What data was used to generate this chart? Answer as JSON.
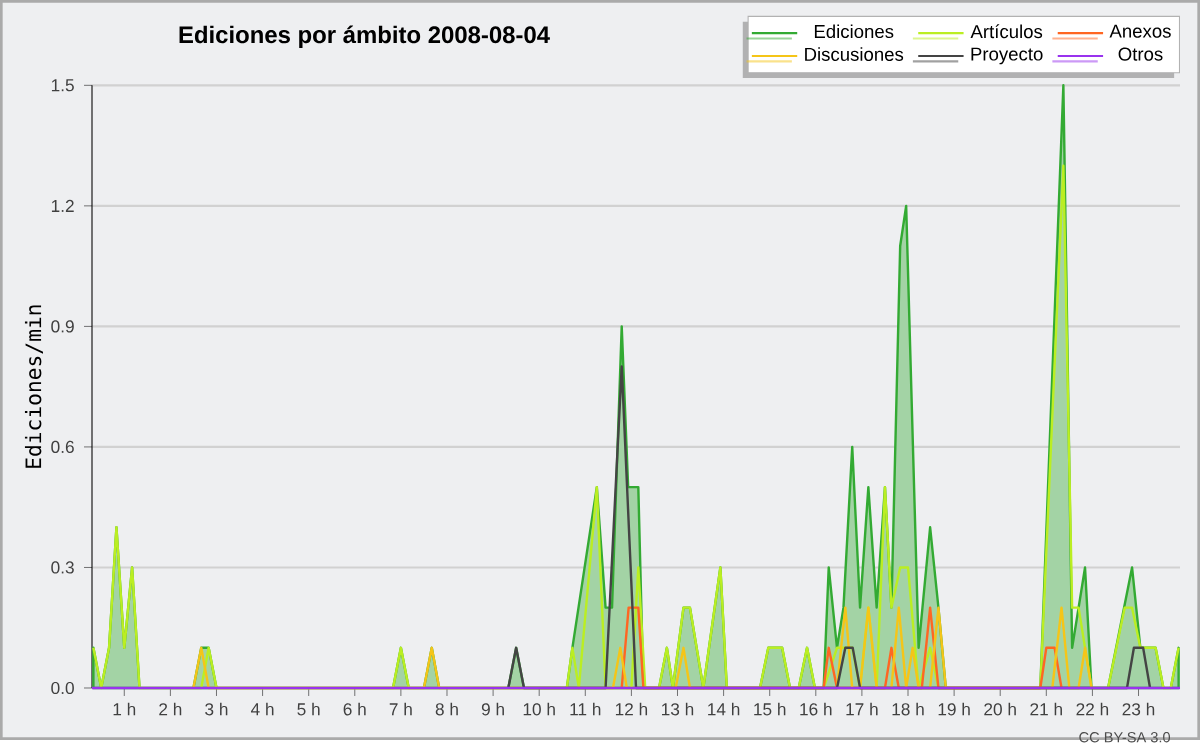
{
  "chart_data": {
    "type": "line",
    "title": "Ediciones por ámbito  2008-08-04",
    "ylabel": "Ediciones/min",
    "annotations": [
      "CC BY-SA 3.0"
    ],
    "xlim": [
      0.3,
      23.9
    ],
    "ylim": [
      0,
      1.5
    ],
    "xticks": [
      {
        "value": 1,
        "label": "1 h"
      },
      {
        "value": 2,
        "label": "2 h"
      },
      {
        "value": 3,
        "label": "3 h"
      },
      {
        "value": 4,
        "label": "4 h"
      },
      {
        "value": 5,
        "label": "5 h"
      },
      {
        "value": 6,
        "label": "6 h"
      },
      {
        "value": 7,
        "label": "7 h"
      },
      {
        "value": 8,
        "label": "8 h"
      },
      {
        "value": 9,
        "label": "9 h"
      },
      {
        "value": 10,
        "label": "10 h"
      },
      {
        "value": 11,
        "label": "11 h"
      },
      {
        "value": 12,
        "label": "12 h"
      },
      {
        "value": 13,
        "label": "13 h"
      },
      {
        "value": 14,
        "label": "14 h"
      },
      {
        "value": 15,
        "label": "15 h"
      },
      {
        "value": 16,
        "label": "16 h"
      },
      {
        "value": 17,
        "label": "17 h"
      },
      {
        "value": 18,
        "label": "18 h"
      },
      {
        "value": 19,
        "label": "19 h"
      },
      {
        "value": 20,
        "label": "20 h"
      },
      {
        "value": 21,
        "label": "21 h"
      },
      {
        "value": 22,
        "label": "22 h"
      },
      {
        "value": 23,
        "label": "23 h"
      }
    ],
    "yticks": [
      {
        "value": 0,
        "label": "0.0"
      },
      0.3,
      0.6,
      0.9,
      1.2,
      1.5
    ],
    "grid": "y",
    "legend": "top right",
    "marker": "none",
    "line_style": "solid",
    "series": [
      {
        "name": "Ediciones",
        "type": "area",
        "color": "#33aa33",
        "x": [
          0.33,
          0.5,
          0.67,
          0.83,
          1.0,
          1.17,
          1.33,
          2.5,
          2.67,
          2.83,
          3.0,
          6.83,
          7.0,
          7.17,
          7.5,
          7.67,
          7.83,
          9.33,
          9.5,
          9.67,
          10.6,
          10.72,
          11.25,
          11.44,
          11.58,
          11.79,
          11.93,
          12.15,
          12.26,
          12.6,
          12.77,
          12.9,
          13.13,
          13.27,
          13.56,
          13.93,
          14.07,
          14.79,
          14.97,
          15.27,
          15.44,
          15.63,
          15.81,
          15.98,
          16.17,
          16.28,
          16.46,
          16.6,
          16.79,
          16.96,
          17.14,
          17.32,
          17.5,
          17.64,
          17.83,
          17.96,
          18.23,
          18.48,
          18.66,
          18.82,
          20.87,
          21.37,
          21.56,
          21.84,
          21.98,
          22.34,
          22.86,
          23.04,
          23.37,
          23.54,
          23.7,
          23.87
        ],
        "values": [
          0.1,
          0,
          0.1,
          0.4,
          0.1,
          0.3,
          0,
          0,
          0.1,
          0.1,
          0,
          0,
          0.1,
          0,
          0,
          0.1,
          0,
          0,
          0.1,
          0,
          0,
          0.1,
          0.5,
          0.2,
          0.2,
          0.9,
          0.5,
          0.5,
          0,
          0,
          0.1,
          0,
          0.2,
          0.2,
          0,
          0.3,
          0,
          0,
          0.1,
          0.1,
          0,
          0,
          0.1,
          0,
          0,
          0.3,
          0.1,
          0.2,
          0.6,
          0.2,
          0.5,
          0.2,
          0.5,
          0.2,
          1.1,
          1.2,
          0.1,
          0.4,
          0.2,
          0,
          0,
          1.5,
          0.1,
          0.3,
          0,
          0,
          0.3,
          0.1,
          0.1,
          0,
          0,
          0.1
        ]
      },
      {
        "name": "Artículos",
        "color": "#bbee22",
        "x": [
          0.33,
          0.5,
          0.67,
          0.83,
          1.0,
          1.17,
          1.33,
          2.67,
          2.83,
          3.0,
          6.83,
          7.0,
          7.17,
          10.6,
          10.72,
          10.86,
          11.25,
          11.44,
          12.0,
          12.15,
          12.3,
          12.6,
          12.77,
          12.9,
          13.13,
          13.27,
          13.56,
          13.93,
          14.07,
          14.79,
          14.97,
          15.27,
          15.44,
          15.63,
          15.81,
          15.98,
          16.17,
          16.46,
          16.6,
          16.79,
          16.96,
          17.14,
          17.32,
          17.5,
          17.64,
          17.83,
          18.0,
          18.23,
          18.48,
          18.66,
          20.87,
          21.37,
          21.56,
          21.7,
          21.84,
          21.98,
          22.34,
          22.7,
          22.86,
          23.04,
          23.37,
          23.54,
          23.7,
          23.87
        ],
        "values": [
          0.1,
          0,
          0.1,
          0.4,
          0.1,
          0.3,
          0,
          0,
          0.1,
          0,
          0,
          0.1,
          0,
          0,
          0.1,
          0,
          0.5,
          0,
          0,
          0.3,
          0,
          0,
          0.1,
          0,
          0.2,
          0.2,
          0,
          0.3,
          0,
          0,
          0.1,
          0.1,
          0,
          0,
          0.1,
          0,
          0,
          0.1,
          0.1,
          0.1,
          0,
          0.2,
          0,
          0.5,
          0.2,
          0.3,
          0.3,
          0,
          0.1,
          0,
          0,
          1.3,
          0.2,
          0.2,
          0.1,
          0,
          0,
          0.2,
          0.2,
          0.1,
          0.1,
          0,
          0,
          0.1
        ]
      },
      {
        "name": "Anexos",
        "color": "#ff6622",
        "x": [
          11.79,
          11.94,
          12.15,
          12.26,
          16.17,
          16.28,
          16.46,
          17.5,
          17.64,
          17.8,
          18.3,
          18.48,
          18.66,
          20.87,
          21.0,
          21.18,
          21.33
        ],
        "values": [
          0,
          0.2,
          0.2,
          0,
          0,
          0.1,
          0,
          0,
          0.1,
          0,
          0,
          0.2,
          0,
          0,
          0.1,
          0.1,
          0
        ]
      },
      {
        "name": "Discusiones",
        "color": "#f5c518",
        "x": [
          2.5,
          2.67,
          2.83,
          7.5,
          7.67,
          7.83,
          11.6,
          11.76,
          11.9,
          12.96,
          13.13,
          13.27,
          16.46,
          16.64,
          16.79,
          16.96,
          17.14,
          17.32,
          17.64,
          17.8,
          17.96,
          18.1,
          18.23,
          18.48,
          18.66,
          18.82,
          21.13,
          21.33,
          21.5,
          21.7,
          21.84,
          21.98
        ],
        "values": [
          0,
          0.1,
          0,
          0,
          0.1,
          0,
          0,
          0.1,
          0,
          0,
          0.1,
          0,
          0,
          0.2,
          0,
          0,
          0.2,
          0,
          0,
          0.2,
          0,
          0.1,
          0,
          0,
          0.2,
          0,
          0,
          0.2,
          0,
          0,
          0.1,
          0
        ]
      },
      {
        "name": "Proyecto",
        "color": "#444444",
        "x": [
          9.33,
          9.5,
          9.67,
          11.44,
          11.79,
          12.1,
          16.46,
          16.64,
          16.8,
          16.96,
          22.75,
          22.9,
          23.1,
          23.25
        ],
        "values": [
          0,
          0.1,
          0,
          0,
          0.8,
          0,
          0,
          0.1,
          0.1,
          0,
          0,
          0.1,
          0.1,
          0
        ]
      },
      {
        "name": "Otros",
        "color": "#9933ee",
        "x": [
          0.3,
          23.9
        ],
        "values": [
          0,
          0
        ]
      }
    ]
  }
}
